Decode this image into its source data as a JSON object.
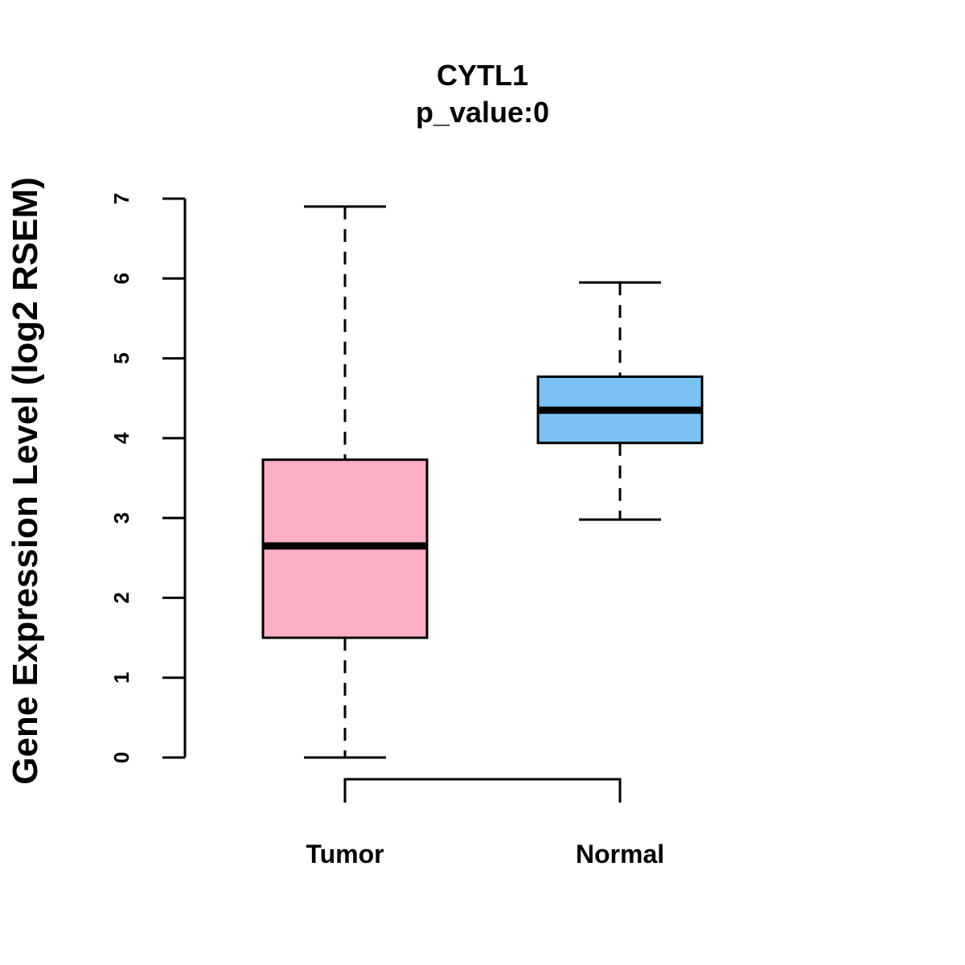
{
  "chart_data": {
    "type": "box",
    "title": "CYTL1",
    "subtitle": "p_value:0",
    "xlabel": "",
    "ylabel": "Gene Expression Level (log2 RSEM)",
    "ylim": [
      0,
      7
    ],
    "yticks": [
      "0",
      "1",
      "2",
      "3",
      "4",
      "5",
      "6",
      "7"
    ],
    "categories": [
      "Tumor",
      "Normal"
    ],
    "boxes": [
      {
        "name": "Tumor",
        "min": 0.0,
        "q1": 1.5,
        "median": 2.65,
        "q3": 3.73,
        "max": 6.9,
        "color": "#FFB0C4"
      },
      {
        "name": "Normal",
        "min": 2.98,
        "q1": 3.94,
        "median": 4.35,
        "q3": 4.77,
        "max": 5.95,
        "color": "#7AC1F8"
      }
    ],
    "grid": false,
    "significance_bracket": {
      "from": "Tumor",
      "to": "Normal"
    }
  }
}
